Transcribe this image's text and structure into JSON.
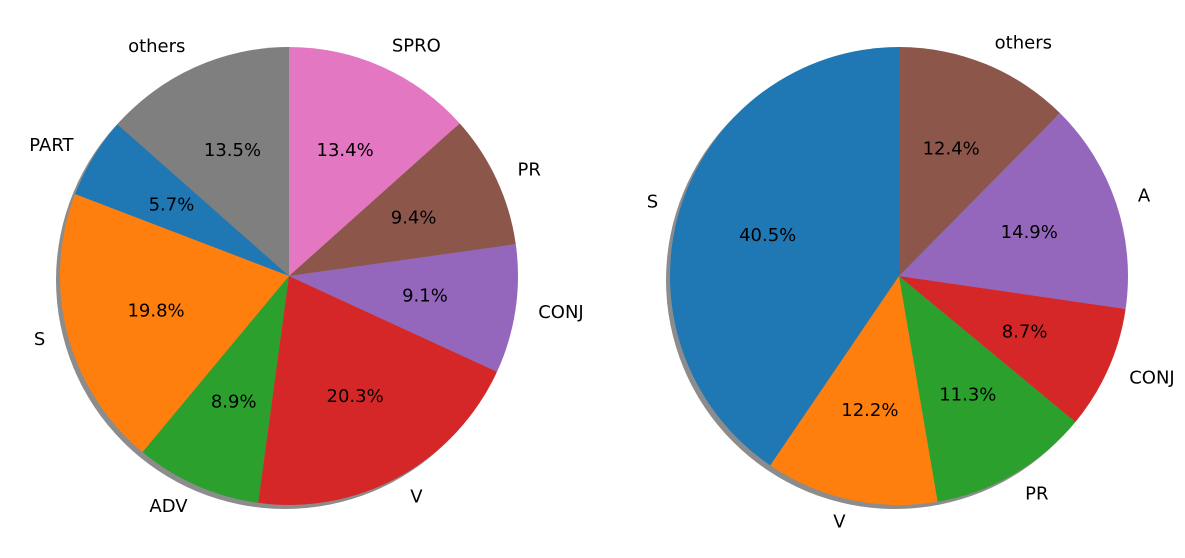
{
  "chart_data": [
    {
      "type": "pie",
      "labels": [
        "others",
        "PART",
        "S",
        "ADV",
        "V",
        "CONJ",
        "PR",
        "SPRO"
      ],
      "values": [
        13.5,
        5.7,
        19.8,
        8.9,
        20.3,
        9.1,
        9.4,
        13.4
      ],
      "value_labels": [
        "13.5%",
        "5.7%",
        "19.8%",
        "8.9%",
        "20.3%",
        "9.1%",
        "9.4%",
        "13.4%"
      ],
      "colors": [
        "#7f7f7f",
        "#1f77b4",
        "#ff7f0e",
        "#2ca02c",
        "#d62728",
        "#9467bd",
        "#8c564b",
        "#e377c2"
      ],
      "start_angle_deg": 90,
      "direction": "counterclockwise",
      "shadow": true
    },
    {
      "type": "pie",
      "labels": [
        "S",
        "V",
        "PR",
        "CONJ",
        "A",
        "others"
      ],
      "values": [
        40.5,
        12.2,
        11.3,
        8.7,
        14.9,
        12.4
      ],
      "value_labels": [
        "40.5%",
        "12.2%",
        "11.3%",
        "8.7%",
        "14.9%",
        "12.4%"
      ],
      "colors": [
        "#1f77b4",
        "#ff7f0e",
        "#2ca02c",
        "#d62728",
        "#9467bd",
        "#8c564b"
      ],
      "start_angle_deg": 90,
      "direction": "counterclockwise",
      "shadow": true
    }
  ]
}
